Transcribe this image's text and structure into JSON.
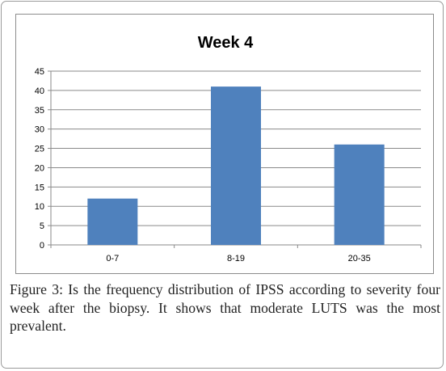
{
  "chart_data": {
    "type": "bar",
    "title": "Week 4",
    "categories": [
      "0-7",
      "8-19",
      "20-35"
    ],
    "values": [
      12,
      41,
      26
    ],
    "ylim": [
      0,
      45
    ],
    "yticks": [
      0,
      5,
      10,
      15,
      20,
      25,
      30,
      35,
      40,
      45
    ],
    "xlabel": "",
    "ylabel": "",
    "grid": true,
    "legend": "none",
    "bar_color": "#4f81bd"
  },
  "caption": {
    "label": "Figure 3",
    "text": ": Is the frequency distribution of IPSS according to severity four week after the biopsy. It shows that moderate LUTS was the most prevalent."
  }
}
